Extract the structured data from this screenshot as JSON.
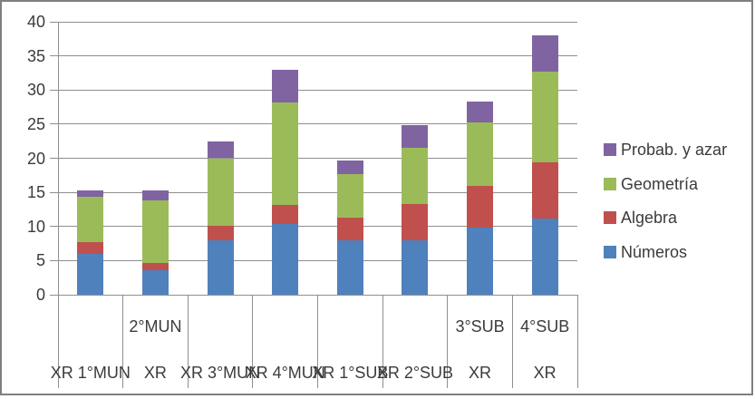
{
  "chart_data": {
    "type": "bar",
    "stacked": true,
    "title": "",
    "xlabel": "",
    "ylabel": "",
    "ylim": [
      0,
      40
    ],
    "ytick_interval": 5,
    "yticks": [
      "0",
      "5",
      "10",
      "15",
      "20",
      "25",
      "30",
      "35",
      "40"
    ],
    "grid": true,
    "legend_position": "right",
    "categories": [
      "1°MUN",
      "2°MUN",
      "3°MUN",
      "4°MUN",
      "1°SUB",
      "2°SUB",
      "3°SUB",
      "4°SUB"
    ],
    "sub_category_label": "XR",
    "series": [
      {
        "name": "Números",
        "slug": "numeros",
        "color": "#4F81BD",
        "values": [
          6.0,
          3.6,
          8.0,
          10.3,
          8.0,
          8.0,
          9.8,
          11.1
        ]
      },
      {
        "name": "Algebra",
        "slug": "algebra",
        "color": "#C0504D",
        "values": [
          1.7,
          1.1,
          2.1,
          2.9,
          3.3,
          5.3,
          6.2,
          8.3
        ]
      },
      {
        "name": "Geometría",
        "slug": "geometria",
        "color": "#9BBB59",
        "values": [
          6.7,
          9.1,
          9.9,
          15.0,
          6.4,
          8.2,
          9.2,
          13.3
        ]
      },
      {
        "name": "Probab. y azar",
        "slug": "probab-y-azar",
        "color": "#8064A2",
        "values": [
          0.9,
          1.5,
          2.4,
          4.8,
          2.0,
          3.4,
          3.1,
          5.3
        ]
      }
    ],
    "axis_labels": {
      "bottom_tier": [
        "XR 1°MUN",
        "XR",
        "XR 3°MUN",
        "XR 4°MUN",
        "XR 1°SUB",
        "XR 2°SUB",
        "XR",
        "XR"
      ],
      "upper_tier": [
        {
          "index": 1,
          "text": "2°MUN"
        },
        {
          "index": 6,
          "text": "3°SUB"
        },
        {
          "index": 7,
          "text": "4°SUB"
        }
      ]
    },
    "legend_labels": [
      "Probab. y azar",
      "Geometría",
      "Algebra",
      "Números"
    ]
  },
  "colors": {
    "gridline": "#8f8f8f",
    "axis": "#8f8f8f",
    "border": "#7f7f7f",
    "text": "#3b3b3b",
    "background": "#ffffff"
  }
}
